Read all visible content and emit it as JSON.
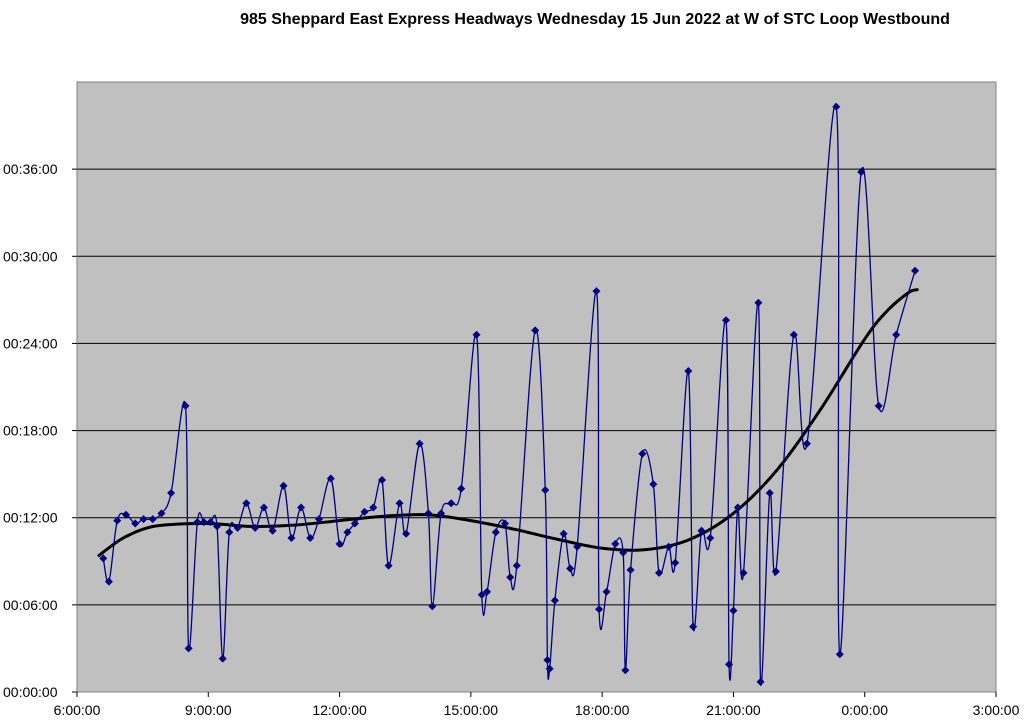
{
  "chart_data": {
    "type": "line",
    "title": "985 Sheppard East Express Headways Wednesday 15 Jun 2022 at W of STC Loop Westbound",
    "xlabel": "",
    "ylabel": "",
    "x_unit": "time of day (hours; values above 24 are after midnight)",
    "y_unit": "headway (minutes)",
    "xlim": [
      6,
      27
    ],
    "ylim": [
      0,
      42
    ],
    "x_ticks": [
      {
        "value": 6,
        "label": "6:00:00"
      },
      {
        "value": 9,
        "label": "9:00:00"
      },
      {
        "value": 12,
        "label": "12:00:00"
      },
      {
        "value": 15,
        "label": "15:00:00"
      },
      {
        "value": 18,
        "label": "18:00:00"
      },
      {
        "value": 21,
        "label": "21:00:00"
      },
      {
        "value": 24,
        "label": "0:00:00"
      },
      {
        "value": 27,
        "label": "3:00:00"
      }
    ],
    "y_ticks": [
      {
        "value": 0,
        "label": "00:00:00"
      },
      {
        "value": 6,
        "label": "00:06:00"
      },
      {
        "value": 12,
        "label": "00:12:00"
      },
      {
        "value": 18,
        "label": "00:18:00"
      },
      {
        "value": 24,
        "label": "00:24:00"
      },
      {
        "value": 30,
        "label": "00:30:00"
      },
      {
        "value": 36,
        "label": "00:36:00"
      }
    ],
    "grid": {
      "horizontal": true,
      "vertical": false
    },
    "legend": "none",
    "colors": {
      "plot_background": "#c0c0c0",
      "series": "#000080",
      "trend": "#000000",
      "gridline": "#000000"
    },
    "series": [
      {
        "points": [
          [
            6.6,
            9.2
          ],
          [
            6.73,
            7.6
          ],
          [
            6.92,
            11.8
          ],
          [
            7.12,
            12.2
          ],
          [
            7.33,
            11.6
          ],
          [
            7.52,
            11.9
          ],
          [
            7.73,
            11.9
          ],
          [
            7.93,
            12.3
          ],
          [
            8.15,
            13.7
          ],
          [
            8.48,
            19.7
          ],
          [
            8.55,
            3.0
          ],
          [
            8.75,
            11.7
          ],
          [
            8.9,
            11.7
          ],
          [
            9.05,
            11.7
          ],
          [
            9.2,
            11.4
          ],
          [
            9.33,
            2.3
          ],
          [
            9.48,
            11.0
          ],
          [
            9.67,
            11.3
          ],
          [
            9.87,
            13.0
          ],
          [
            10.07,
            11.3
          ],
          [
            10.27,
            12.7
          ],
          [
            10.47,
            11.1
          ],
          [
            10.72,
            14.2
          ],
          [
            10.9,
            10.6
          ],
          [
            11.12,
            12.7
          ],
          [
            11.33,
            10.6
          ],
          [
            11.53,
            11.9
          ],
          [
            11.8,
            14.7
          ],
          [
            12.0,
            10.2
          ],
          [
            12.18,
            11.0
          ],
          [
            12.35,
            11.6
          ],
          [
            12.57,
            12.4
          ],
          [
            12.77,
            12.7
          ],
          [
            12.97,
            14.6
          ],
          [
            13.12,
            8.7
          ],
          [
            13.37,
            13.0
          ],
          [
            13.52,
            10.9
          ],
          [
            13.83,
            17.1
          ],
          [
            14.03,
            12.3
          ],
          [
            14.12,
            5.9
          ],
          [
            14.32,
            12.3
          ],
          [
            14.55,
            13.0
          ],
          [
            14.78,
            14.0
          ],
          [
            15.13,
            24.6
          ],
          [
            15.25,
            6.7
          ],
          [
            15.37,
            6.9
          ],
          [
            15.57,
            11.0
          ],
          [
            15.78,
            11.6
          ],
          [
            15.9,
            7.9
          ],
          [
            16.05,
            8.7
          ],
          [
            16.47,
            24.9
          ],
          [
            16.7,
            13.9
          ],
          [
            16.75,
            2.2
          ],
          [
            16.8,
            1.6
          ],
          [
            16.92,
            6.3
          ],
          [
            17.12,
            10.9
          ],
          [
            17.27,
            8.5
          ],
          [
            17.43,
            10.0
          ],
          [
            17.87,
            27.6
          ],
          [
            17.93,
            5.7
          ],
          [
            18.1,
            6.9
          ],
          [
            18.3,
            10.2
          ],
          [
            18.48,
            9.6
          ],
          [
            18.53,
            1.5
          ],
          [
            18.65,
            8.4
          ],
          [
            18.92,
            16.4
          ],
          [
            19.17,
            14.3
          ],
          [
            19.3,
            8.2
          ],
          [
            19.52,
            10.0
          ],
          [
            19.67,
            8.9
          ],
          [
            19.97,
            22.1
          ],
          [
            20.08,
            4.5
          ],
          [
            20.27,
            11.1
          ],
          [
            20.47,
            10.6
          ],
          [
            20.83,
            25.6
          ],
          [
            20.9,
            1.9
          ],
          [
            21.0,
            5.6
          ],
          [
            21.1,
            12.7
          ],
          [
            21.23,
            8.2
          ],
          [
            21.57,
            26.8
          ],
          [
            21.62,
            0.7
          ],
          [
            21.83,
            13.7
          ],
          [
            21.97,
            8.3
          ],
          [
            22.38,
            24.6
          ],
          [
            22.68,
            17.1
          ],
          [
            23.35,
            40.3
          ],
          [
            23.43,
            2.6
          ],
          [
            23.92,
            35.8
          ],
          [
            24.32,
            19.7
          ],
          [
            24.72,
            24.6
          ],
          [
            25.15,
            29.0
          ]
        ]
      },
      {
        "points": [
          [
            6.5,
            9.4
          ],
          [
            7.0,
            10.5
          ],
          [
            7.5,
            11.2
          ],
          [
            8.0,
            11.5
          ],
          [
            9.0,
            11.6
          ],
          [
            10.0,
            11.4
          ],
          [
            11.0,
            11.5
          ],
          [
            12.0,
            11.8
          ],
          [
            13.0,
            12.1
          ],
          [
            14.0,
            12.2
          ],
          [
            15.0,
            11.8
          ],
          [
            16.0,
            11.2
          ],
          [
            17.0,
            10.5
          ],
          [
            18.0,
            9.9
          ],
          [
            19.0,
            9.8
          ],
          [
            20.0,
            10.5
          ],
          [
            21.0,
            12.3
          ],
          [
            22.0,
            15.3
          ],
          [
            23.0,
            19.5
          ],
          [
            24.0,
            24.3
          ],
          [
            24.5,
            26.2
          ],
          [
            25.0,
            27.5
          ],
          [
            25.2,
            27.7
          ]
        ]
      }
    ]
  }
}
